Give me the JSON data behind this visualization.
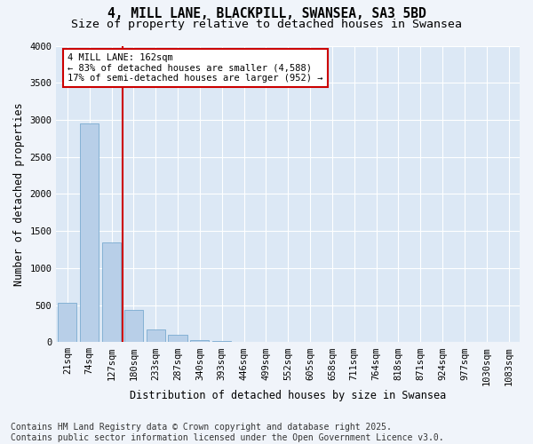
{
  "title_line1": "4, MILL LANE, BLACKPILL, SWANSEA, SA3 5BD",
  "title_line2": "Size of property relative to detached houses in Swansea",
  "xlabel": "Distribution of detached houses by size in Swansea",
  "ylabel": "Number of detached properties",
  "categories": [
    "21sqm",
    "74sqm",
    "127sqm",
    "180sqm",
    "233sqm",
    "287sqm",
    "340sqm",
    "393sqm",
    "446sqm",
    "499sqm",
    "552sqm",
    "605sqm",
    "658sqm",
    "711sqm",
    "764sqm",
    "818sqm",
    "871sqm",
    "924sqm",
    "977sqm",
    "1030sqm",
    "1083sqm"
  ],
  "values": [
    530,
    2950,
    1350,
    430,
    175,
    100,
    30,
    10,
    5,
    2,
    1,
    1,
    0,
    0,
    0,
    0,
    0,
    0,
    0,
    0,
    0
  ],
  "bar_color": "#b8cfe8",
  "bar_edge_color": "#7aaad0",
  "property_line_color": "#cc0000",
  "annotation_text": "4 MILL LANE: 162sqm\n← 83% of detached houses are smaller (4,588)\n17% of semi-detached houses are larger (952) →",
  "annotation_box_color": "#ffffff",
  "annotation_box_edge_color": "#cc0000",
  "ylim": [
    0,
    4000
  ],
  "yticks": [
    0,
    500,
    1000,
    1500,
    2000,
    2500,
    3000,
    3500,
    4000
  ],
  "background_color": "#dce8f5",
  "plot_bg_color": "#dce8f5",
  "grid_color": "#ffffff",
  "fig_bg_color": "#f0f4fa",
  "footer_text": "Contains HM Land Registry data © Crown copyright and database right 2025.\nContains public sector information licensed under the Open Government Licence v3.0.",
  "title_fontsize": 10.5,
  "subtitle_fontsize": 9.5,
  "axis_label_fontsize": 8.5,
  "tick_fontsize": 7.5,
  "annotation_fontsize": 7.5,
  "footer_fontsize": 7.0
}
